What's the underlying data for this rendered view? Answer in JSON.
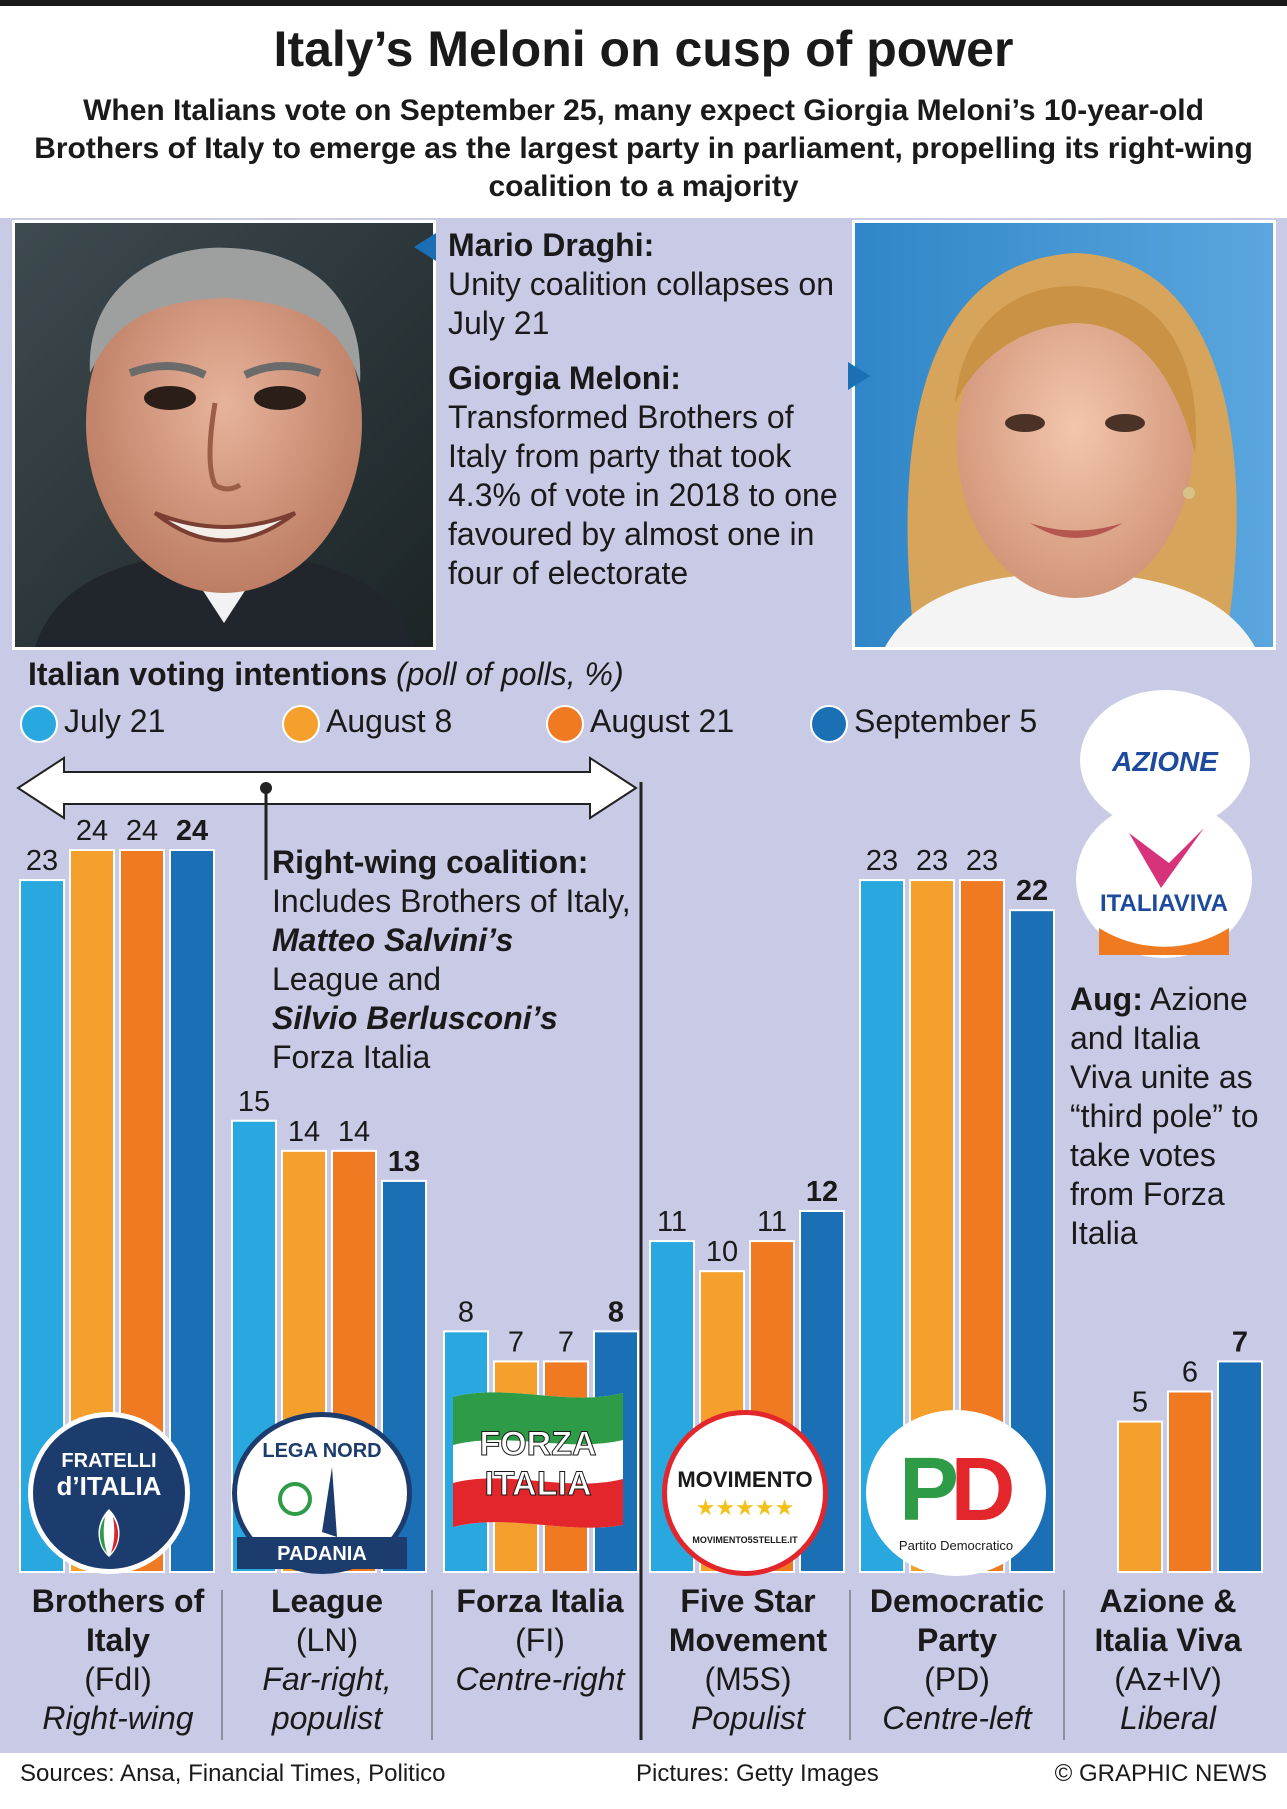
{
  "title": "Italy’s Meloni on cusp of power",
  "subtitle": "When Italians vote on September 25, many expect Giorgia Meloni’s 10-year-old Brothers of Italy to emerge as the largest party in parliament, propelling its right-wing coalition to a majority",
  "draghi": {
    "name": "Mario Draghi:",
    "text": "Unity coalition collapses on July 21"
  },
  "meloni": {
    "name": "Giorgia Meloni:",
    "text": "Transformed Brothers of Italy from party that took 4.3% of vote in 2018 to one favoured by almost one in four of electorate"
  },
  "legend": {
    "title": "Italian voting intentions",
    "title_note": "(poll of polls, %)",
    "items": [
      {
        "label": "July 21",
        "color": "#29a8e0"
      },
      {
        "label": "August 8",
        "color": "#f5a02c"
      },
      {
        "label": "August 21",
        "color": "#f07a22"
      },
      {
        "label": "September 5",
        "color": "#1a6fb5"
      }
    ]
  },
  "coalition_note": {
    "head": "Right-wing coalition:",
    "line1": "Includes Brothers of Italy,",
    "salvini": "Matteo Salvini’s",
    "line2": "League and",
    "berlusconi": "Silvio Berlusconi’s",
    "line3": "Forza Italia"
  },
  "third_pole_note": {
    "head": "Aug:",
    "text": "Azione and Italia Viva unite as “third pole” to take votes from Forza Italia"
  },
  "logos": {
    "fdi_line1": "FRATELLI",
    "fdi_line2": "d’ITALIA",
    "lega_top": "LEGA NORD",
    "lega_bottom": "PADANIA",
    "fi_line1": "FORZA",
    "fi_line2": "ITALIA",
    "m5s_name": "MOVIMENTO",
    "m5s_url": "MOVIMENTO5STELLE.IT",
    "pd_letters": "PD",
    "pd_name": "Partito Democratico",
    "azione": "AZIONE",
    "italiaviva": "ITALIAVIVA"
  },
  "chart_data": {
    "type": "bar",
    "categories": [
      "Brothers of Italy (FdI)",
      "League (LN)",
      "Forza Italia (FI)",
      "Five Star Movement (M5S)",
      "Democratic Party (PD)",
      "Azione & Italia Viva (Az+IV)"
    ],
    "series": [
      {
        "name": "July 21",
        "values": [
          23,
          15,
          8,
          11,
          23,
          null
        ],
        "color": "#29a8e0"
      },
      {
        "name": "August 8",
        "values": [
          24,
          14,
          7,
          10,
          23,
          5
        ],
        "color": "#f5a02c"
      },
      {
        "name": "August 21",
        "values": [
          24,
          14,
          7,
          11,
          23,
          6
        ],
        "color": "#f07a22"
      },
      {
        "name": "September 5",
        "values": [
          24,
          13,
          8,
          12,
          22,
          7
        ],
        "color": "#1a6fb5"
      }
    ],
    "labels": [
      [
        "23",
        "24",
        "24",
        "24"
      ],
      [
        "15",
        "14",
        "14",
        "13"
      ],
      [
        "8",
        "7",
        "7",
        "8"
      ],
      [
        "11",
        "10",
        "11",
        "12"
      ],
      [
        "23",
        "23",
        "23",
        "22"
      ],
      [
        "",
        "5",
        "6",
        "7"
      ]
    ],
    "ylim": [
      0,
      24
    ],
    "grid": false,
    "legend_position": "top-left"
  },
  "parties": [
    {
      "name": "Brothers of Italy",
      "abbr": "(FdI)",
      "desc": "Right-wing"
    },
    {
      "name": "League",
      "abbr": "(LN)",
      "desc": "Far-right, populist"
    },
    {
      "name": "Forza Italia",
      "abbr": "(FI)",
      "desc": "Centre-right"
    },
    {
      "name": "Five Star Movement",
      "abbr": "(M5S)",
      "desc": "Populist"
    },
    {
      "name": "Democratic Party",
      "abbr": "(PD)",
      "desc": "Centre-left"
    },
    {
      "name": "Azione & Italia Viva",
      "abbr": "(Az+IV)",
      "desc": "Liberal"
    }
  ],
  "footer": {
    "sources": "Sources: Ansa, Financial Times, Politico",
    "pictures": "Pictures: Getty Images",
    "credit": "© GRAPHIC NEWS"
  }
}
